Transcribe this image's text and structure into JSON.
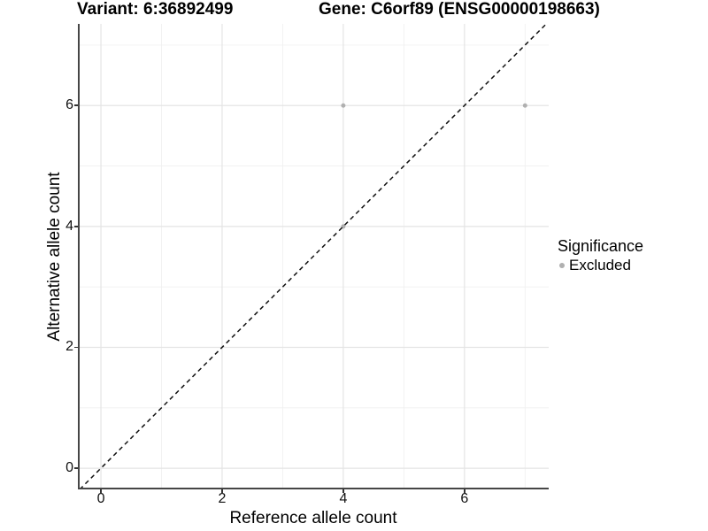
{
  "titles": {
    "variant": "Variant: 6:36892499",
    "gene": "Gene: C6orf89 (ENSG00000198663)"
  },
  "axes": {
    "x": {
      "label": "Reference allele count",
      "tick_labels": [
        "0",
        "2",
        "4",
        "6"
      ]
    },
    "y": {
      "label": "Alternative allele count",
      "tick_labels": [
        "0",
        "2",
        "4",
        "6"
      ]
    }
  },
  "legend": {
    "title": "Significance",
    "items": [
      {
        "label": "Excluded",
        "color": "#b0b0b0"
      }
    ]
  },
  "chart_data": {
    "type": "scatter",
    "title_left": "Variant: 6:36892499",
    "title_right": "Gene: C6orf89 (ENSG00000198663)",
    "xlabel": "Reference allele count",
    "ylabel": "Alternative allele count",
    "xlim": [
      -0.38,
      7.39
    ],
    "ylim": [
      -0.35,
      7.35
    ],
    "x_ticks": [
      0,
      2,
      4,
      6
    ],
    "y_ticks": [
      0,
      2,
      4,
      6
    ],
    "x_minor_ticks": [
      1,
      3,
      5,
      7
    ],
    "y_minor_ticks": [
      1,
      3,
      5,
      7
    ],
    "grid": true,
    "legend_position": "right",
    "series": [
      {
        "name": "Excluded",
        "color": "#b0b0b0",
        "points": [
          [
            4,
            4
          ],
          [
            4,
            6
          ],
          [
            7,
            6
          ]
        ]
      }
    ],
    "reference_line": {
      "type": "identity",
      "equation": "y = x",
      "style": "dashed",
      "color": "#111111"
    }
  },
  "colors": {
    "background": "#ffffff",
    "axis_line": "#464646",
    "grid_major": "#e4e4e4",
    "grid_minor": "#f0f0f0",
    "point": "#b0b0b0",
    "dashed_line": "#111111",
    "text": "#000000"
  }
}
